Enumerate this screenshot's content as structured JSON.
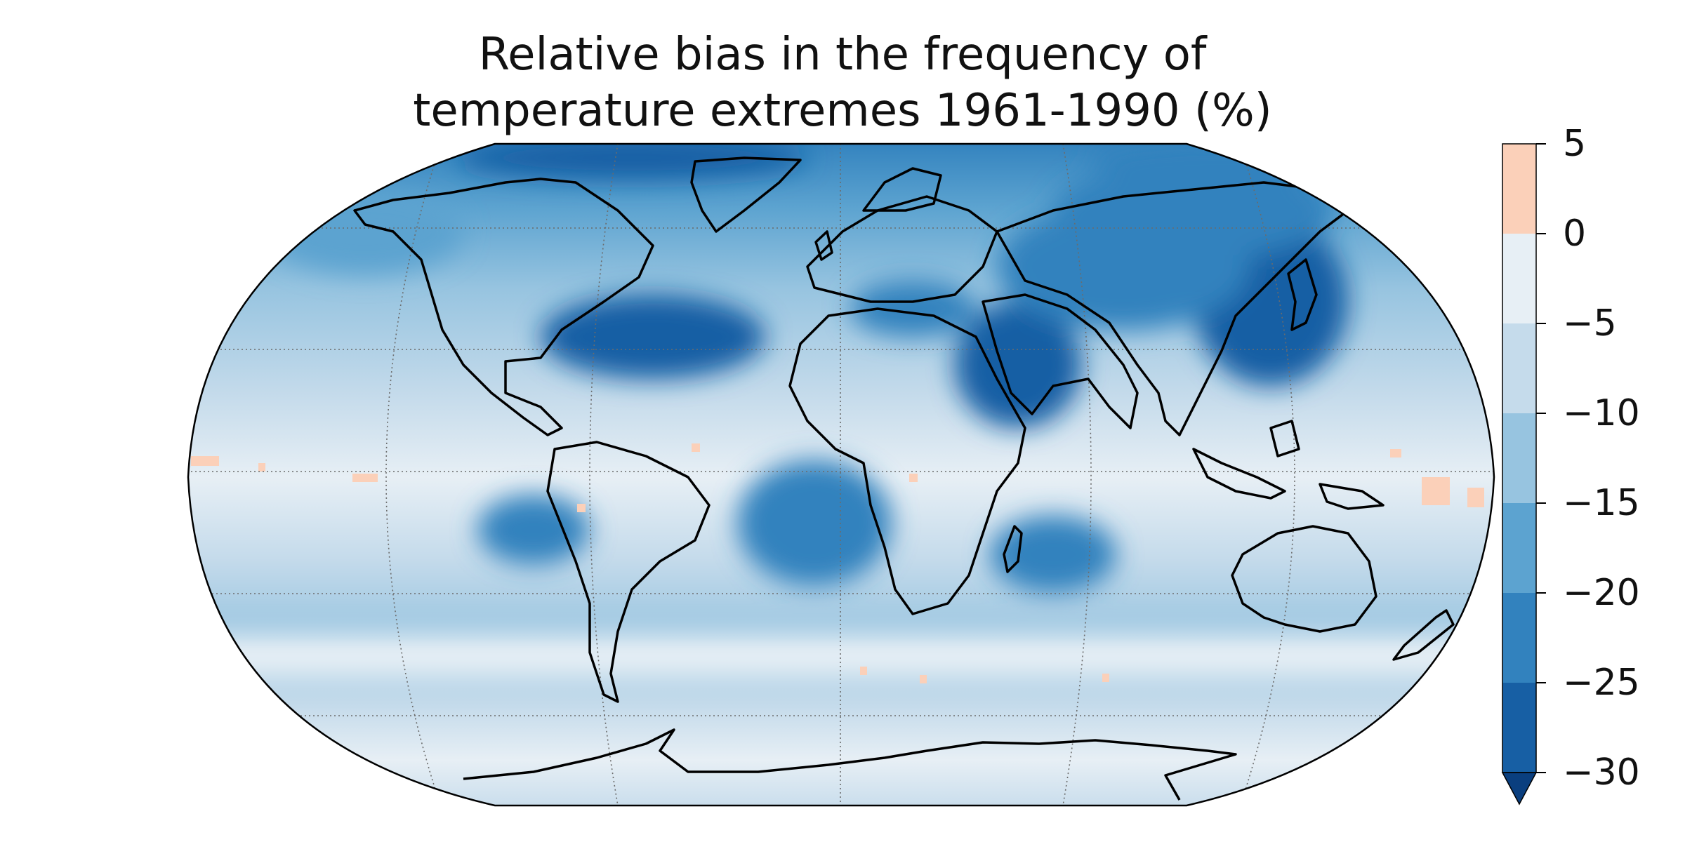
{
  "title": {
    "line1": "Relative bias in the frequency of",
    "line2": "temperature extremes 1961-1990 (%)"
  },
  "colorbar": {
    "ticks": [
      "5",
      "0",
      "−5",
      "−10",
      "−15",
      "−20",
      "−25",
      "−30"
    ],
    "levels": [
      5,
      0,
      -5,
      -10,
      -15,
      -20,
      -25,
      -30
    ],
    "colors": [
      "#fbd0b9",
      "#e7eff5",
      "#c5dbeb",
      "#97c4e0",
      "#5ca3d0",
      "#3282be",
      "#175fa4",
      "#0a3f7f"
    ],
    "extend": "min"
  },
  "map": {
    "projection": "Robinson",
    "graticule": true,
    "coastlines": true,
    "colormap": "RdBu_r"
  }
}
